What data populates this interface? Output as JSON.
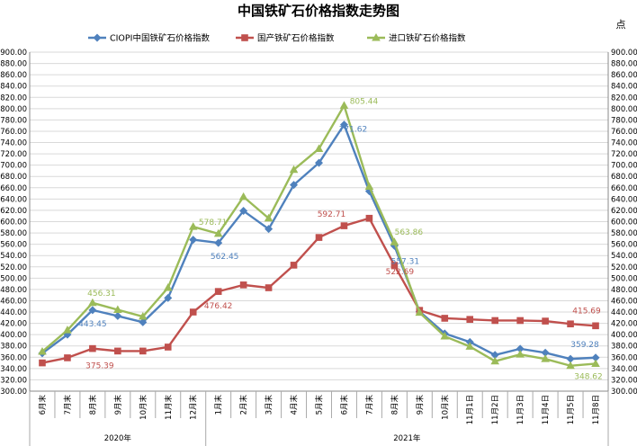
{
  "chart_data": {
    "type": "line",
    "title": "中国铁矿石价格指数走势图",
    "unit": "点",
    "ylim": [
      300,
      900
    ],
    "ytick_step": 20,
    "categories": [
      "6月末",
      "7月末",
      "8月末",
      "9月末",
      "10月末",
      "11月末",
      "12月末",
      "1月末",
      "2月末",
      "3月末",
      "4月末",
      "5月末",
      "6月末",
      "7月末",
      "8月末",
      "9月末",
      "10月末",
      "11月1日",
      "11月2日",
      "11月3日",
      "11月4日",
      "11月5日",
      "11月8日"
    ],
    "year_groups": [
      {
        "label": "2020年",
        "start": 0,
        "end": 6
      },
      {
        "label": "2021年",
        "start": 7,
        "end": 22
      }
    ],
    "legend_position": "top",
    "grid": true,
    "series": [
      {
        "name": "CIOPI中国铁矿石价格指数",
        "color": "#4f81bd",
        "marker": "diamond",
        "values": [
          367,
          400,
          443.45,
          433,
          422,
          465,
          568,
          562.45,
          619,
          587,
          665,
          704,
          771.62,
          654,
          557.31,
          441,
          402,
          387,
          364,
          375,
          368,
          357,
          359.28
        ],
        "labels": {
          "2": "443.45",
          "7": "562.45",
          "12": "771.62",
          "14": "557.31",
          "22": "359.28"
        }
      },
      {
        "name": "国产铁矿石价格指数",
        "color": "#c0504d",
        "marker": "square",
        "values": [
          350,
          359,
          375.39,
          371,
          371,
          378,
          440,
          476.42,
          488,
          483,
          523,
          572,
          592.71,
          606,
          522.69,
          443,
          429,
          427,
          425,
          425,
          424,
          419,
          415.69
        ],
        "labels": {
          "2": "375.39",
          "7": "476.42",
          "12": "592.71",
          "14": "522.69",
          "22": "415.69"
        }
      },
      {
        "name": "进口铁矿石价格指数",
        "color": "#9bbb59",
        "marker": "triangle",
        "values": [
          370,
          408,
          456.31,
          444,
          432,
          483,
          591,
          578.71,
          644,
          606,
          692,
          729,
          805.44,
          662,
          563.86,
          439,
          397,
          379,
          353,
          365,
          357,
          345,
          348.62
        ],
        "labels": {
          "2": "456.31",
          "7": "578.71",
          "12": "805.44",
          "14": "563.86",
          "22": "348.62"
        }
      }
    ]
  }
}
